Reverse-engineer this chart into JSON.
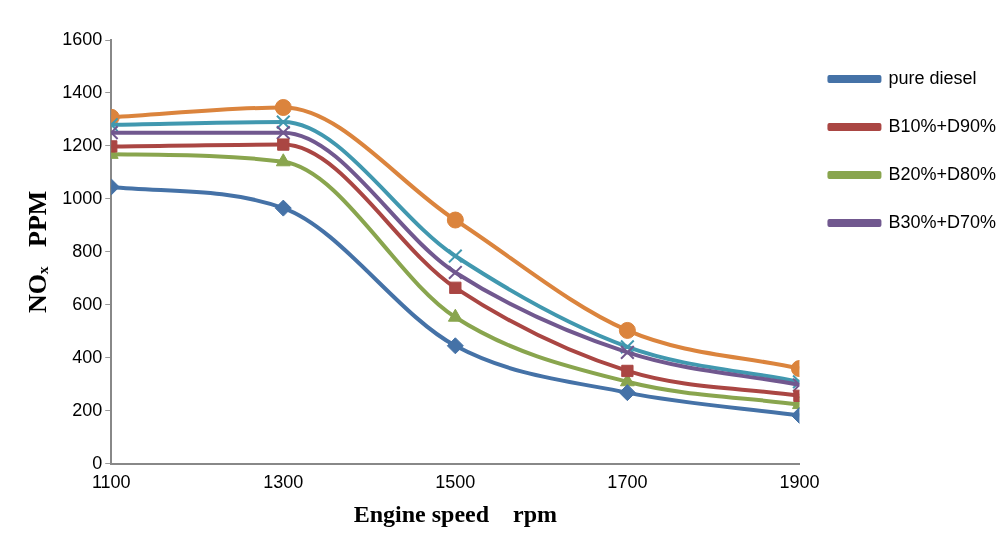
{
  "chart_data": {
    "type": "line",
    "xlabel": "Engine speed    rpm",
    "ylabel": "NOₓ   PPM",
    "x": [
      1100,
      1300,
      1500,
      1700,
      1900
    ],
    "series": [
      {
        "name": "pure diesel",
        "color": "#4572a7",
        "marker": "diamond",
        "values": [
          1045,
          965,
          445,
          268,
          182
        ]
      },
      {
        "name": "B10%+D90%",
        "color": "#aa4643",
        "marker": "square",
        "values": [
          1198,
          1205,
          664,
          350,
          256
        ]
      },
      {
        "name": "B20%+D80%",
        "color": "#89a54e",
        "marker": "triangle",
        "values": [
          1168,
          1140,
          553,
          309,
          223
        ]
      },
      {
        "name": "B30%+D70%",
        "color": "#71588f",
        "marker": "cross",
        "values": [
          1250,
          1250,
          722,
          420,
          297
        ]
      },
      {
        "color": "#4198af",
        "marker": "cross",
        "values": [
          1280,
          1290,
          784,
          441,
          309
        ]
      },
      {
        "color": "#db843d",
        "marker": "circle",
        "values": [
          1308,
          1345,
          920,
          503,
          359
        ]
      }
    ],
    "xlim": [
      1100,
      1900
    ],
    "xticks": [
      1100,
      1300,
      1500,
      1700,
      1900
    ],
    "ylim": [
      0,
      1600
    ],
    "yticks": [
      0,
      200,
      400,
      600,
      800,
      1000,
      1200,
      1400,
      1600
    ],
    "grid": false,
    "legend": "top right"
  }
}
